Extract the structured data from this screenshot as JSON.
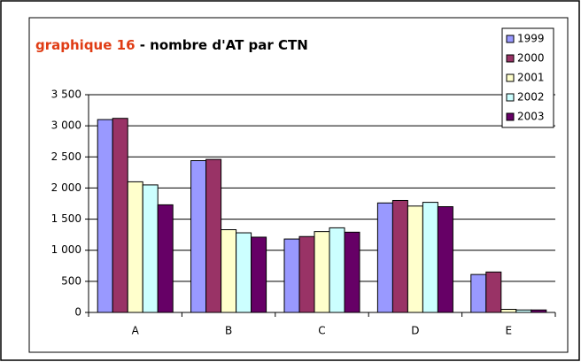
{
  "chart_data": {
    "type": "bar",
    "title": "graphique 16",
    "subtitle": "- nombre d'AT par CTN",
    "title_color": "#e03c14",
    "categories": [
      "A",
      "B",
      "C",
      "D",
      "E"
    ],
    "series": [
      {
        "name": "1999",
        "color": "#9999ff",
        "values": [
          3100,
          2440,
          1180,
          1760,
          610
        ]
      },
      {
        "name": "2000",
        "color": "#993366",
        "values": [
          3120,
          2460,
          1220,
          1800,
          650
        ]
      },
      {
        "name": "2001",
        "color": "#ffffcc",
        "values": [
          2100,
          1330,
          1300,
          1710,
          50
        ]
      },
      {
        "name": "2002",
        "color": "#ccffff",
        "values": [
          2050,
          1280,
          1360,
          1770,
          40
        ]
      },
      {
        "name": "2003",
        "color": "#660066",
        "values": [
          1730,
          1210,
          1290,
          1700,
          40
        ]
      }
    ],
    "ylim": [
      0,
      3500
    ],
    "yticks": [
      0,
      500,
      {
        "value": 1000,
        "label": "1 000"
      },
      {
        "value": 1500,
        "label": "1 500"
      },
      {
        "value": 2000,
        "label": "2 000"
      },
      {
        "value": 2500,
        "label": "2 500"
      },
      {
        "value": 3000,
        "label": "3 000"
      },
      {
        "value": 3500,
        "label": "3 500"
      }
    ],
    "grid": true,
    "legend": "top-right"
  }
}
